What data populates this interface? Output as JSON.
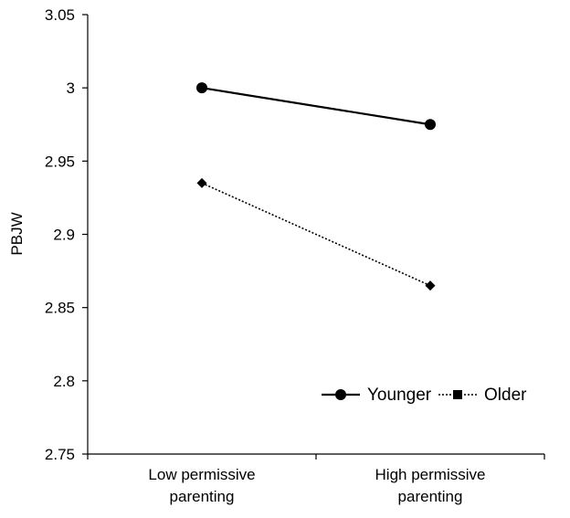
{
  "chart_data": {
    "type": "line",
    "title": "",
    "ylabel": "PBJW",
    "xlabel": "",
    "categories": [
      [
        "Low permissive",
        "parenting"
      ],
      [
        "High permissive",
        "parenting"
      ]
    ],
    "ylim": [
      2.75,
      3.05
    ],
    "yticks": [
      "2.75",
      "2.8",
      "2.85",
      "2.9",
      "2.95",
      "3",
      "3.05"
    ],
    "legend_position": "bottom-right",
    "series": [
      {
        "name": "Younger",
        "values": [
          3.0,
          2.975
        ],
        "line": "solid",
        "marker": "circle"
      },
      {
        "name": "Older",
        "values": [
          2.935,
          2.865
        ],
        "line": "dotted",
        "marker": "diamond",
        "legend_marker": "square"
      }
    ]
  }
}
